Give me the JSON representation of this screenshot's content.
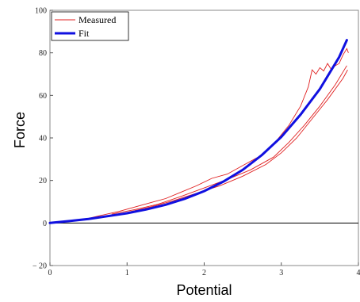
{
  "chart_data": {
    "type": "line",
    "title": "",
    "xlabel": "Potential",
    "ylabel": "Force",
    "xlim": [
      0,
      4
    ],
    "ylim": [
      -20,
      100
    ],
    "x_ticks": [
      0,
      1,
      2,
      3,
      4
    ],
    "y_ticks": [
      -20,
      0,
      20,
      40,
      60,
      80,
      100
    ],
    "grid": false,
    "legend": "top-left",
    "series": [
      {
        "name": "Measured",
        "color": "#e02020",
        "x": [
          0.0,
          0.3,
          0.5,
          0.7,
          0.9,
          1.1,
          1.3,
          1.5,
          1.7,
          1.9,
          2.1,
          2.3,
          2.5,
          2.7,
          2.9,
          3.1,
          3.25,
          3.35,
          3.4,
          3.45,
          3.5,
          3.55,
          3.6,
          3.65,
          3.7,
          3.75,
          3.8,
          3.85,
          3.87
        ],
        "y": [
          0.0,
          1.2,
          2.2,
          3.9,
          5.5,
          7.5,
          9.5,
          11.5,
          14.5,
          17.5,
          21.0,
          23.0,
          27.0,
          31.0,
          37.0,
          46.0,
          55.0,
          64.0,
          72.0,
          70.0,
          73.0,
          71.5,
          75.0,
          72.0,
          74.0,
          75.0,
          79.0,
          82.0,
          80.0
        ]
      },
      {
        "name": "Fit",
        "color": "#1010e0",
        "x": [
          0.0,
          0.25,
          0.5,
          0.75,
          1.0,
          1.25,
          1.5,
          1.75,
          2.0,
          2.25,
          2.5,
          2.75,
          3.0,
          3.25,
          3.5,
          3.75,
          3.85
        ],
        "y": [
          0.0,
          0.9,
          1.9,
          3.2,
          4.6,
          6.4,
          8.6,
          11.4,
          15.0,
          19.5,
          25.0,
          32.0,
          40.5,
          51.0,
          63.0,
          78.0,
          86.0
        ]
      }
    ],
    "measured_extra_loops": [
      {
        "x": [
          0.7,
          1.0,
          1.3,
          1.6,
          1.9,
          2.2,
          2.5,
          2.8,
          3.0,
          3.2,
          3.4,
          3.6,
          3.8,
          3.86
        ],
        "y": [
          3.0,
          5.0,
          7.5,
          10.5,
          14.0,
          17.5,
          22.0,
          27.5,
          33.0,
          40.0,
          49.0,
          58.0,
          68.0,
          72.0
        ]
      },
      {
        "x": [
          0.8,
          1.1,
          1.4,
          1.7,
          2.0,
          2.3,
          2.6,
          2.9,
          3.1,
          3.3,
          3.5,
          3.7,
          3.85
        ],
        "y": [
          4.2,
          6.3,
          8.8,
          12.5,
          16.5,
          20.5,
          25.0,
          31.0,
          38.0,
          46.0,
          55.0,
          65.0,
          74.0
        ]
      }
    ]
  }
}
